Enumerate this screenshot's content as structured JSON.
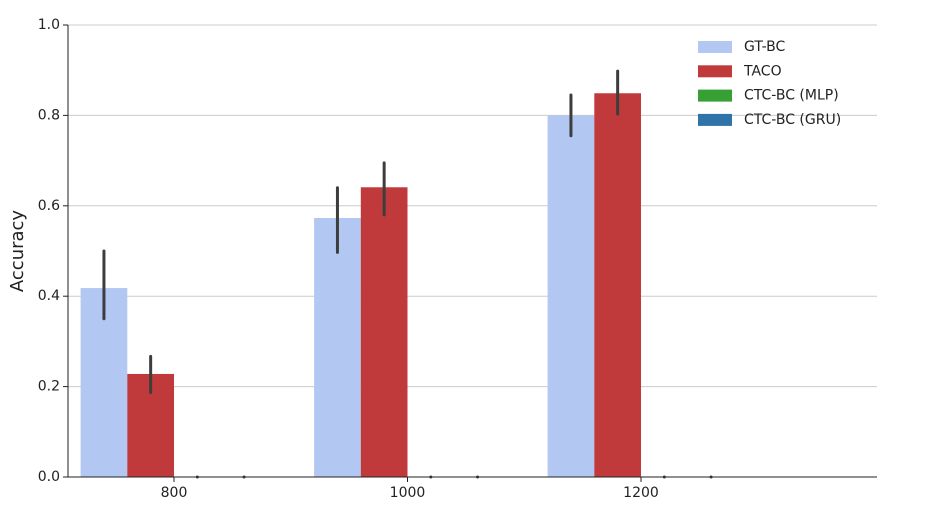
{
  "chart_data": {
    "type": "bar",
    "y_label": "Accuracy",
    "categories": [
      "800",
      "1000",
      "1200"
    ],
    "series": [
      {
        "name": "GT-BC",
        "color": "#b3c7f3",
        "values": [
          0.418,
          0.573,
          0.8
        ],
        "ci_low": [
          0.35,
          0.497,
          0.755
        ],
        "ci_high": [
          0.5,
          0.64,
          0.845
        ]
      },
      {
        "name": "TACO",
        "color": "#c03a3b",
        "values": [
          0.228,
          0.641,
          0.849
        ],
        "ci_low": [
          0.187,
          0.58,
          0.803
        ],
        "ci_high": [
          0.267,
          0.695,
          0.898
        ]
      },
      {
        "name": "CTC-BC (MLP)",
        "color": "#36a035",
        "values": [
          0,
          0,
          0
        ],
        "ci_low": [
          0,
          0,
          0
        ],
        "ci_high": [
          0,
          0,
          0
        ]
      },
      {
        "name": "CTC-BC (GRU)",
        "color": "#2f73a8",
        "values": [
          0,
          0,
          0
        ],
        "ci_low": [
          0,
          0,
          0
        ],
        "ci_high": [
          0,
          0,
          0
        ]
      }
    ],
    "ylim": [
      0,
      1
    ],
    "yticks": [
      {
        "value": 0,
        "label": "0.0"
      },
      0.2,
      0.4,
      0.6,
      0.8,
      {
        "value": 1,
        "label": "1.0"
      }
    ],
    "grid": true,
    "legend": "upper right"
  }
}
